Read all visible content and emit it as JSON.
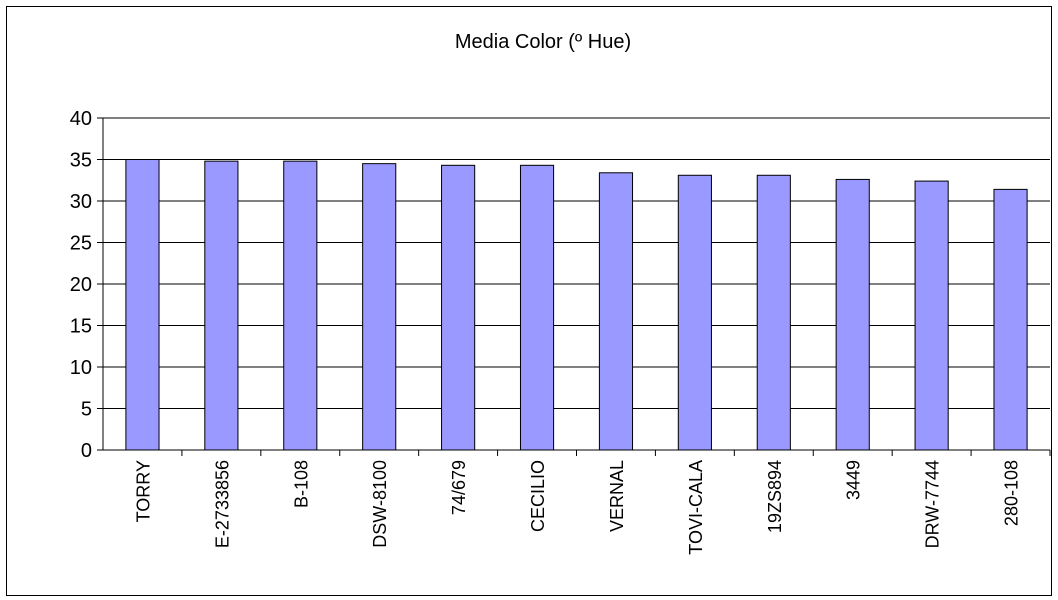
{
  "chart_data": {
    "type": "bar",
    "title": "Media Color (º Hue)",
    "xlabel": "",
    "ylabel": "",
    "categories": [
      "TORRY",
      "E-2733856",
      "B-108",
      "DSW-8100",
      "74/679",
      "CECILIO",
      "VERNAL",
      "TOVI-CALA",
      "19ZS894",
      "3449",
      "DRW-7744",
      "280-108"
    ],
    "values": [
      35.0,
      34.8,
      34.8,
      34.5,
      34.3,
      34.3,
      33.4,
      33.1,
      33.1,
      32.6,
      32.4,
      31.4
    ],
    "ylim": [
      0,
      40
    ],
    "yticks": [
      "0",
      "5",
      "10",
      "15",
      "20",
      "25",
      "30",
      "35",
      "40"
    ],
    "grid": true,
    "legend": "none",
    "bar_color": "#9999FF"
  }
}
